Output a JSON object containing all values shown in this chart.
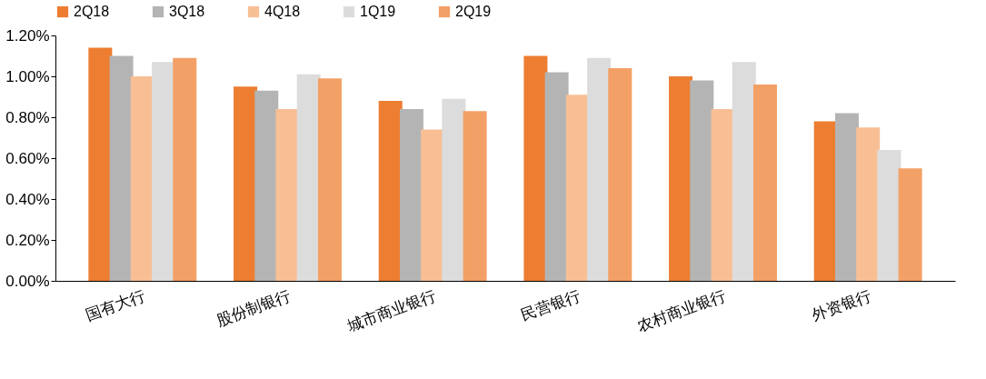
{
  "chart_data": {
    "type": "bar",
    "categories": [
      "国有大行",
      "股份制银行",
      "城市商业银行",
      "民营银行",
      "农村商业银行",
      "外资银行"
    ],
    "series": [
      {
        "name": "2Q18",
        "color": "#ed7d31",
        "values": [
          1.14,
          0.95,
          0.88,
          1.1,
          1.0,
          0.78
        ]
      },
      {
        "name": "3Q18",
        "color": "#b4b4b4",
        "values": [
          1.1,
          0.93,
          0.84,
          1.02,
          0.98,
          0.82
        ]
      },
      {
        "name": "4Q18",
        "color": "#f8bf95",
        "values": [
          1.0,
          0.84,
          0.74,
          0.91,
          0.84,
          0.75
        ]
      },
      {
        "name": "1Q19",
        "color": "#dcdcdc",
        "values": [
          1.07,
          1.01,
          0.89,
          1.09,
          1.07,
          0.64
        ]
      },
      {
        "name": "2Q19",
        "color": "#f3a066",
        "values": [
          1.09,
          0.99,
          0.83,
          1.04,
          0.96,
          0.55
        ]
      }
    ],
    "ylim": [
      0,
      1.2
    ],
    "yticks": [
      {
        "value": 0,
        "label": "0.00%"
      },
      {
        "value": 0.2,
        "label": "0.20%"
      },
      {
        "value": 0.4,
        "label": "0.40%"
      },
      {
        "value": 0.6,
        "label": "0.60%"
      },
      {
        "value": 0.8,
        "label": "0.80%"
      },
      {
        "value": 1.0,
        "label": "1.00%"
      },
      {
        "value": 1.2,
        "label": "1.20%"
      }
    ],
    "grid": false,
    "legend": "top"
  }
}
